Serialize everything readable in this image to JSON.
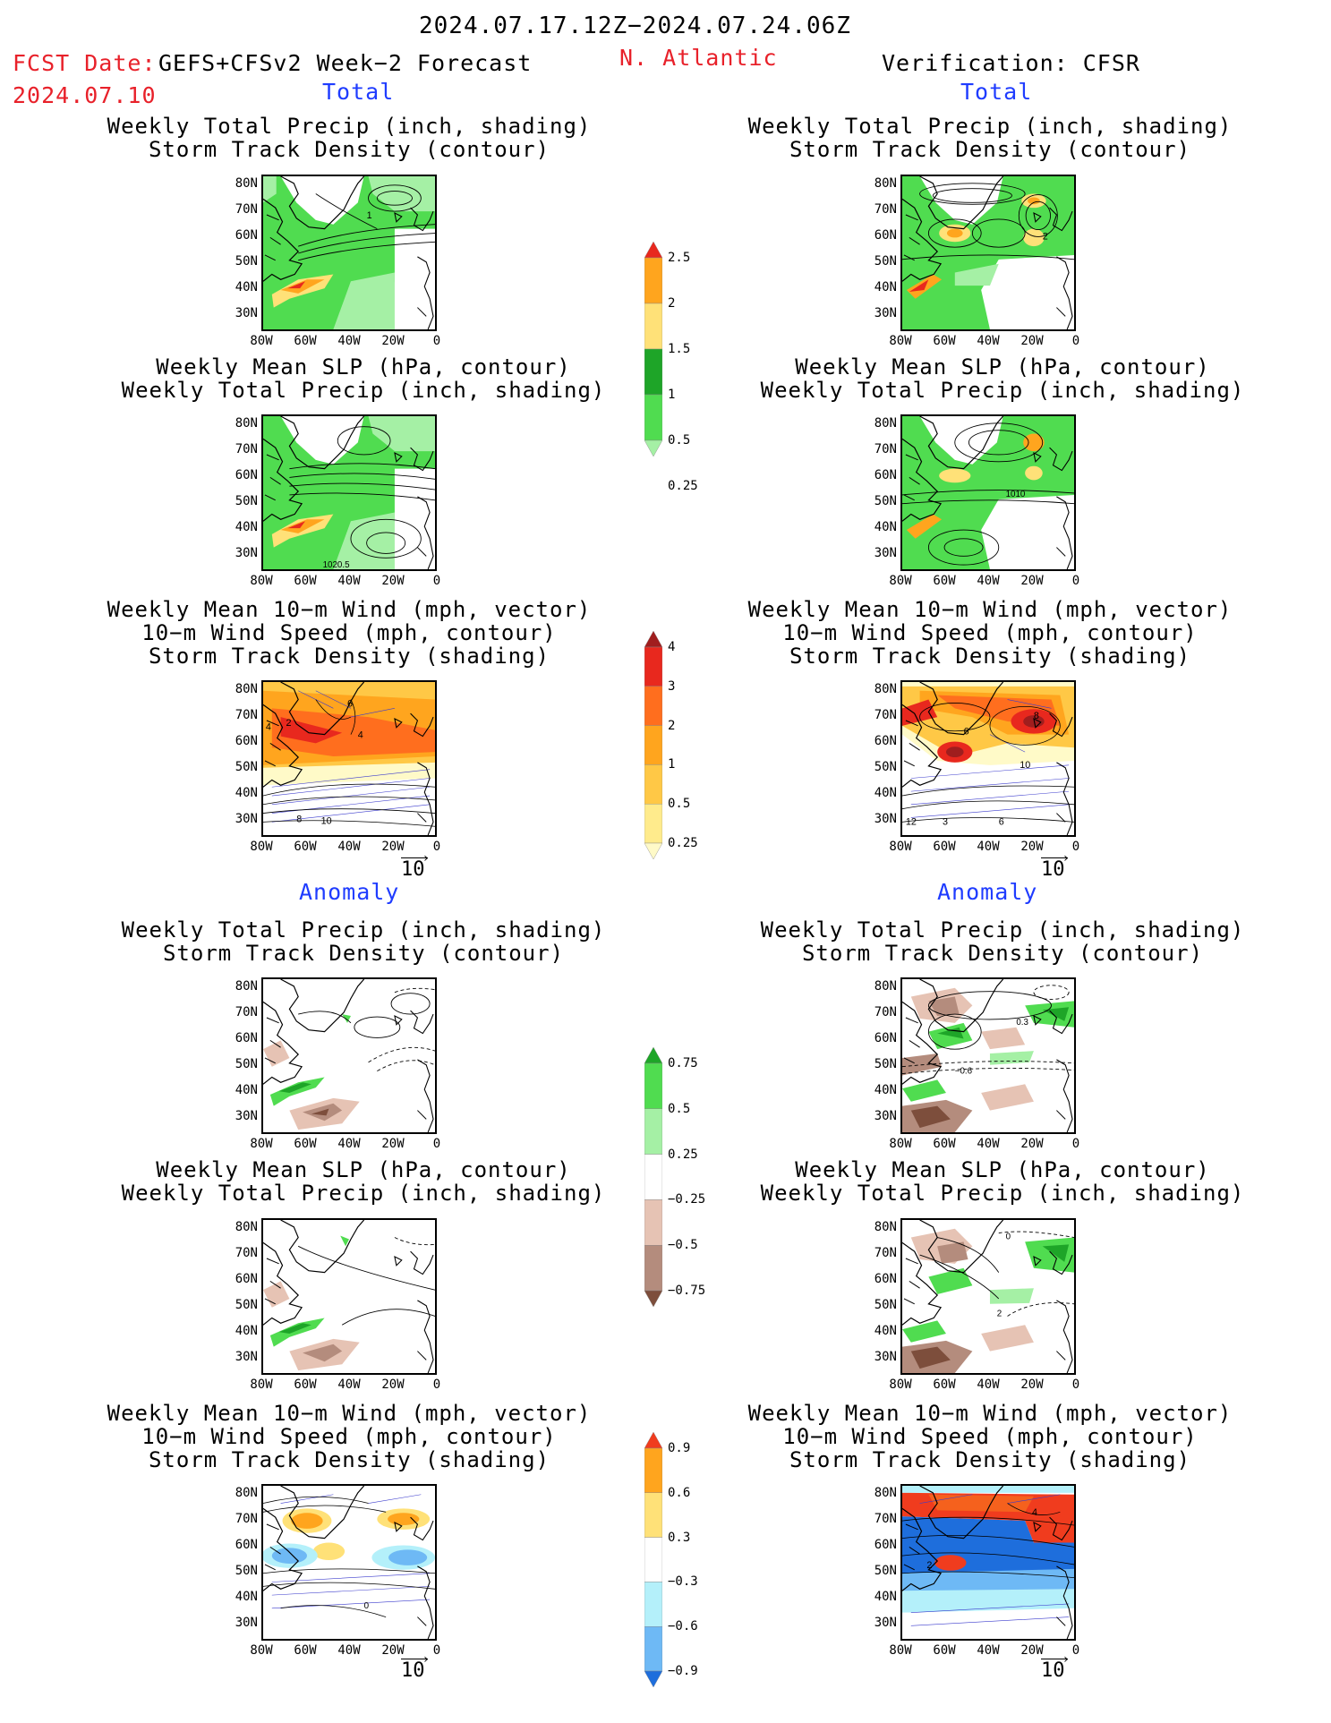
{
  "header": {
    "period": "2024.07.17.12Z−2024.07.24.06Z",
    "fcst_prefix": "FCST Date:",
    "fcst_model": "GEFS+CFSv2 Week−2 Forecast",
    "fcst_date": "2024.07.10",
    "region": "N. Atlantic",
    "verification": "Verification: CFSR"
  },
  "sections": {
    "total": "Total",
    "anomaly": "Anomaly"
  },
  "panel_titles": {
    "precip_storm": [
      "Weekly Total Precip (inch, shading)",
      "Storm Track Density (contour)"
    ],
    "slp_precip": [
      "Weekly Mean SLP (hPa, contour)",
      "Weekly Total Precip (inch, shading)"
    ],
    "wind_storm": [
      "Weekly Mean 10−m Wind (mph, vector)",
      "10−m Wind Speed (mph, contour)",
      "Storm Track Density (shading)"
    ]
  },
  "axes": {
    "lat_labels": [
      "80N",
      "70N",
      "60N",
      "50N",
      "40N",
      "30N"
    ],
    "lon_labels": [
      "80W",
      "60W",
      "40W",
      "20W",
      "0"
    ]
  },
  "vector_ref": "10",
  "colorbars": {
    "precip_total": {
      "labels": [
        "2.5",
        "2",
        "1.5",
        "1",
        "0.5",
        "0.25"
      ],
      "colors": [
        "#e8281e",
        "#ffa51e",
        "#ffe178",
        "#1ea528",
        "#50dc50",
        "#a5f0a5"
      ]
    },
    "storm_total": {
      "labels": [
        "4",
        "3",
        "2",
        "1",
        "0.5",
        "0.25"
      ],
      "colors": [
        "#a01e1e",
        "#e8281e",
        "#ff6e1e",
        "#ffa51e",
        "#ffc846",
        "#ffeb8c",
        "#fffac8"
      ]
    },
    "precip_anom": {
      "labels": [
        "0.75",
        "0.5",
        "0.25",
        "−0.25",
        "−0.5",
        "−0.75"
      ],
      "colors": [
        "#1ea528",
        "#50dc50",
        "#a5f0a5",
        "#ffffff",
        "#e6c3b4",
        "#b48c7d",
        "#7d4e3c"
      ]
    },
    "storm_anom": {
      "labels": [
        "0.9",
        "0.6",
        "0.3",
        "−0.3",
        "−0.6",
        "−0.9"
      ],
      "colors": [
        "#f03c1e",
        "#ffa51e",
        "#ffe178",
        "#ffffff",
        "#b4f0fa",
        "#6eb9f5",
        "#1e6edc"
      ]
    }
  },
  "contour_labels": {
    "L1": "1",
    "R1": "2",
    "R2": "1010",
    "L2": "1020.5",
    "L3a": "4",
    "L3b": "2",
    "L3c": "4",
    "L3d": "6",
    "L3e": "8",
    "L3f": "10",
    "R3a": "8",
    "R3b": "6",
    "R3c": "10",
    "R3d": "12",
    "R3e": "3",
    "R3f": "6",
    "R4a": "0.3",
    "R4b": "−0.6",
    "R5a": "0",
    "R5b": "2",
    "R6a": "2",
    "R6b": "4",
    "L6a": "0"
  }
}
